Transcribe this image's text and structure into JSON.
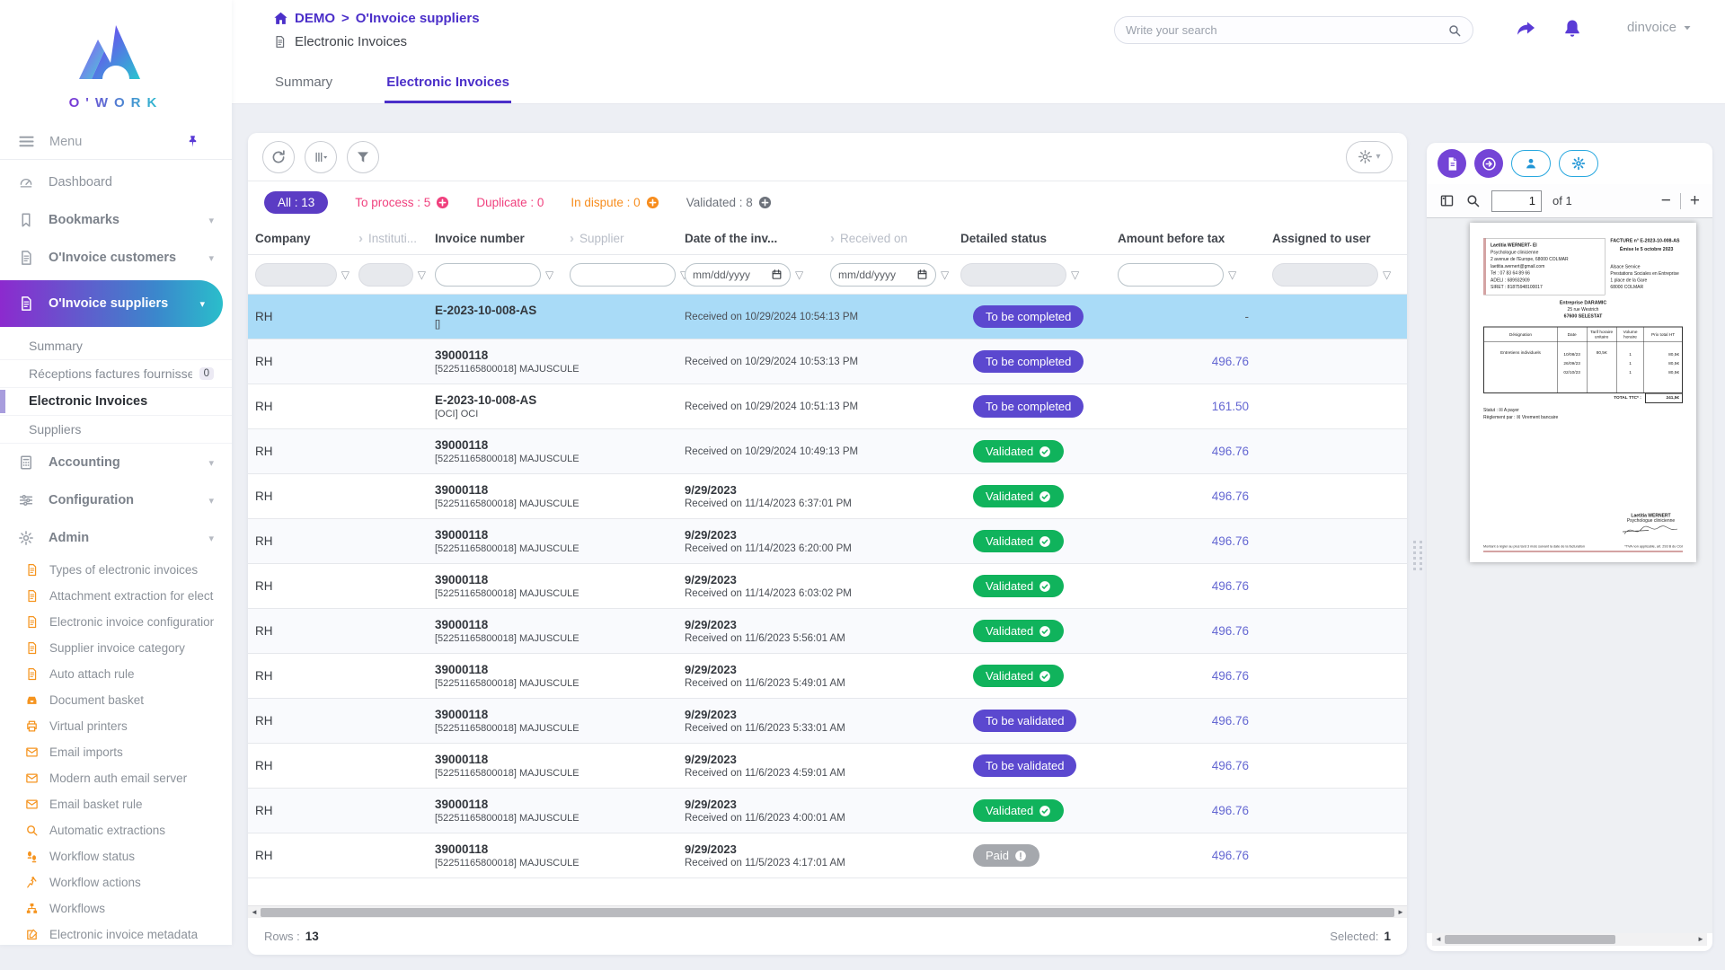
{
  "brand": {
    "logo_text": "O'WORK"
  },
  "header": {
    "breadcrumb_home": "DEMO",
    "breadcrumb_sep": ">",
    "breadcrumb_section": "O'Invoice suppliers",
    "page_title": "Electronic Invoices",
    "search_placeholder": "Write your search",
    "user": "dinvoice"
  },
  "tabs": {
    "summary": "Summary",
    "electronic": "Electronic Invoices"
  },
  "sidebar": {
    "menu_label": "Menu",
    "items": [
      {
        "id": "dashboard",
        "label": "Dashboard",
        "icon": "gauge-icon",
        "kind": "top",
        "first": true
      },
      {
        "id": "bookmarks",
        "label": "Bookmarks",
        "icon": "bookmark-icon",
        "kind": "top",
        "chevron": true
      },
      {
        "id": "oinvoice-customers",
        "label": "O'Invoice customers",
        "icon": "invoice-icon",
        "kind": "top",
        "chevron": true
      },
      {
        "id": "oinvoice-suppliers",
        "label": "O'Invoice suppliers",
        "icon": "invoice-icon",
        "kind": "active",
        "chevron": true
      },
      {
        "id": "summary",
        "label": "Summary",
        "kind": "sub"
      },
      {
        "id": "receptions-factures",
        "label": "Réceptions factures fournisseurs",
        "kind": "sub",
        "badge": "0"
      },
      {
        "id": "electronic-invoices",
        "label": "Electronic Invoices",
        "kind": "sub-selected"
      },
      {
        "id": "suppliers",
        "label": "Suppliers",
        "kind": "sub"
      },
      {
        "id": "accounting",
        "label": "Accounting",
        "icon": "calculator-icon",
        "kind": "top",
        "chevron": true
      },
      {
        "id": "configuration",
        "label": "Configuration",
        "icon": "sliders-icon",
        "kind": "top",
        "chevron": true
      },
      {
        "id": "admin",
        "label": "Admin",
        "icon": "gear-icon",
        "kind": "top",
        "chevron": true
      },
      {
        "id": "types-of-electronic-invoices",
        "label": "Types of electronic invoices",
        "icon": "invoice-icon",
        "kind": "admin"
      },
      {
        "id": "attachment-extraction",
        "label": "Attachment extraction for electron",
        "icon": "invoice-icon",
        "kind": "admin"
      },
      {
        "id": "electronic-invoice-configuration",
        "label": "Electronic invoice configuration",
        "icon": "invoice-icon",
        "kind": "admin"
      },
      {
        "id": "supplier-invoice-category",
        "label": "Supplier invoice category",
        "icon": "invoice-icon",
        "kind": "admin"
      },
      {
        "id": "auto-attach-rule",
        "label": "Auto attach rule",
        "icon": "invoice-icon",
        "kind": "admin"
      },
      {
        "id": "document-basket",
        "label": "Document basket",
        "icon": "inbox-icon",
        "kind": "admin"
      },
      {
        "id": "virtual-printers",
        "label": "Virtual printers",
        "icon": "printer-icon",
        "kind": "admin"
      },
      {
        "id": "email-imports",
        "label": "Email imports",
        "icon": "mail-icon",
        "kind": "admin"
      },
      {
        "id": "modern-auth-email-server",
        "label": "Modern auth email server",
        "icon": "mail-icon",
        "kind": "admin"
      },
      {
        "id": "email-basket-rule",
        "label": "Email basket rule",
        "icon": "mail-icon",
        "kind": "admin"
      },
      {
        "id": "automatic-extractions",
        "label": "Automatic extractions",
        "icon": "search-icon",
        "kind": "admin"
      },
      {
        "id": "workflow-status",
        "label": "Workflow status",
        "icon": "steps-icon",
        "kind": "admin"
      },
      {
        "id": "workflow-actions",
        "label": "Workflow actions",
        "icon": "runner-icon",
        "kind": "admin"
      },
      {
        "id": "workflows",
        "label": "Workflows",
        "icon": "hierarchy-icon",
        "kind": "admin"
      },
      {
        "id": "electronic-invoice-metadata",
        "label": "Electronic invoice metadata",
        "icon": "edit-icon",
        "kind": "admin"
      }
    ]
  },
  "table": {
    "filter_pills": [
      {
        "label": "All : 13",
        "style": "active"
      },
      {
        "label": "To process : 5",
        "style": "pink",
        "plus": true
      },
      {
        "label": "Duplicate : 0",
        "style": "pink"
      },
      {
        "label": "In dispute : 0",
        "style": "orange",
        "plus": true
      },
      {
        "label": "Validated : 8",
        "style": "gray",
        "plus": true
      }
    ],
    "date_placeholder": "mm/dd/yyyy",
    "columns": [
      {
        "label": "Company",
        "strong": true,
        "filter": "disabled"
      },
      {
        "label": "Instituti...",
        "strong": false,
        "filter": "disabled",
        "arrow": true
      },
      {
        "label": "Invoice number",
        "strong": true,
        "filter": "text"
      },
      {
        "label": "Supplier",
        "strong": false,
        "filter": "text",
        "arrow": true
      },
      {
        "label": "Date of the inv...",
        "strong": true,
        "filter": "date"
      },
      {
        "label": "Received on",
        "strong": false,
        "filter": "date",
        "arrow": true
      },
      {
        "label": "Detailed status",
        "strong": true,
        "filter": "disabled"
      },
      {
        "label": "Amount before tax",
        "strong": true,
        "filter": "text"
      },
      {
        "label": "Assigned to user",
        "strong": true,
        "filter": "disabled"
      }
    ],
    "rows": [
      {
        "company": "RH",
        "invoice_number": "E-2023-10-008-AS",
        "invoice_sub": "[]",
        "date": "",
        "received": "Received on 10/29/2024 10:54:13 PM",
        "status": "To be completed",
        "status_type": "purple",
        "amount": "-",
        "selected": true
      },
      {
        "company": "RH",
        "invoice_number": "39000118",
        "invoice_sub": "[52251165800018] MAJUSCULE",
        "date": "",
        "received": "Received on 10/29/2024 10:53:13 PM",
        "status": "To be completed",
        "status_type": "purple",
        "amount": "496.76"
      },
      {
        "company": "RH",
        "invoice_number": "E-2023-10-008-AS",
        "invoice_sub": "[OCI] OCI",
        "date": "",
        "received": "Received on 10/29/2024 10:51:13 PM",
        "status": "To be completed",
        "status_type": "purple",
        "amount": "161.50"
      },
      {
        "company": "RH",
        "invoice_number": "39000118",
        "invoice_sub": "[52251165800018] MAJUSCULE",
        "date": "",
        "received": "Received on 10/29/2024 10:49:13 PM",
        "status": "Validated",
        "status_type": "green",
        "amount": "496.76"
      },
      {
        "company": "RH",
        "invoice_number": "39000118",
        "invoice_sub": "[52251165800018] MAJUSCULE",
        "date": "9/29/2023",
        "received": "Received on 11/14/2023 6:37:01 PM",
        "status": "Validated",
        "status_type": "green",
        "amount": "496.76"
      },
      {
        "company": "RH",
        "invoice_number": "39000118",
        "invoice_sub": "[52251165800018] MAJUSCULE",
        "date": "9/29/2023",
        "received": "Received on 11/14/2023 6:20:00 PM",
        "status": "Validated",
        "status_type": "green",
        "amount": "496.76"
      },
      {
        "company": "RH",
        "invoice_number": "39000118",
        "invoice_sub": "[52251165800018] MAJUSCULE",
        "date": "9/29/2023",
        "received": "Received on 11/14/2023 6:03:02 PM",
        "status": "Validated",
        "status_type": "green",
        "amount": "496.76"
      },
      {
        "company": "RH",
        "invoice_number": "39000118",
        "invoice_sub": "[52251165800018] MAJUSCULE",
        "date": "9/29/2023",
        "received": "Received on 11/6/2023 5:56:01 AM",
        "status": "Validated",
        "status_type": "green",
        "amount": "496.76"
      },
      {
        "company": "RH",
        "invoice_number": "39000118",
        "invoice_sub": "[52251165800018] MAJUSCULE",
        "date": "9/29/2023",
        "received": "Received on 11/6/2023 5:49:01 AM",
        "status": "Validated",
        "status_type": "green",
        "amount": "496.76"
      },
      {
        "company": "RH",
        "invoice_number": "39000118",
        "invoice_sub": "[52251165800018] MAJUSCULE",
        "date": "9/29/2023",
        "received": "Received on 11/6/2023 5:33:01 AM",
        "status": "To be validated",
        "status_type": "purple",
        "amount": "496.76"
      },
      {
        "company": "RH",
        "invoice_number": "39000118",
        "invoice_sub": "[52251165800018] MAJUSCULE",
        "date": "9/29/2023",
        "received": "Received on 11/6/2023 4:59:01 AM",
        "status": "To be validated",
        "status_type": "purple",
        "amount": "496.76"
      },
      {
        "company": "RH",
        "invoice_number": "39000118",
        "invoice_sub": "[52251165800018] MAJUSCULE",
        "date": "9/29/2023",
        "received": "Received on 11/6/2023 4:00:01 AM",
        "status": "Validated",
        "status_type": "green",
        "amount": "496.76"
      },
      {
        "company": "RH",
        "invoice_number": "39000118",
        "invoice_sub": "[52251165800018] MAJUSCULE",
        "date": "9/29/2023",
        "received": "Received on 11/5/2023 4:17:01 AM",
        "status": "Paid",
        "status_type": "gray",
        "amount": "496.76"
      }
    ],
    "footer": {
      "rows_label": "Rows :",
      "rows_value": "13",
      "selected_label": "Selected:",
      "selected_value": "1"
    }
  },
  "preview": {
    "toolbar": {
      "page_value": "1",
      "of_label": "of 1",
      "minus": "−",
      "plus": "+"
    },
    "invoice": {
      "from_name": "Laetitia WERNERT- EI",
      "from_line1": "Psychologue clinicienne",
      "from_line2": "2 avenue de l'Europe, 68000 COLMAR",
      "from_line3": "laetitia.wernert@gmail.com",
      "from_line4": "Tel : 07 83 64 89 66",
      "from_line5": "ADELI : 689932909",
      "from_line6": "SIRET : 81875948100017",
      "title": "FACTURE n° E-2023-10-008-AS",
      "issued": "Émise le 5 octobre 2023",
      "to_line1": "Alsace Service",
      "to_line2": "Prestations Sociales en Entreprise",
      "to_line3": "1 place de la Gare",
      "to_line4": "68000 COLMAR",
      "client_name": "Entreprise DARAMIC",
      "client_line1": "25 rue Westrich",
      "client_line2": "67600 SELESTAT",
      "table": {
        "h1": "Désignation",
        "h2": "Date",
        "h3": "Tarif horaire unitaire",
        "h4": "Volume horaire",
        "h5": "Prix total HT",
        "designation": "Entretiens individuels",
        "date1": "10/08/23",
        "date2": "26/09/23",
        "date3": "02/10/23",
        "rate": "80,5€",
        "vol1": "1",
        "vol2": "1",
        "vol3": "1",
        "price1": "80,5€",
        "price2": "80,5€",
        "price3": "80,5€",
        "total_label": "TOTAL TTC* :",
        "total_value": "241,5€"
      },
      "status_line": "Statut : ☒ A payer",
      "payment_line": "Règlement par : ☒ Virement bancaire",
      "sign_name": "Laetitia WERNERT",
      "sign_title": "Psychologue clinicienne",
      "footer_left": "Montant à régler au plus tard 3 mois suivant la date de la facturation",
      "footer_right": "*TVA non applicable, art. 293 B du CGI"
    }
  }
}
